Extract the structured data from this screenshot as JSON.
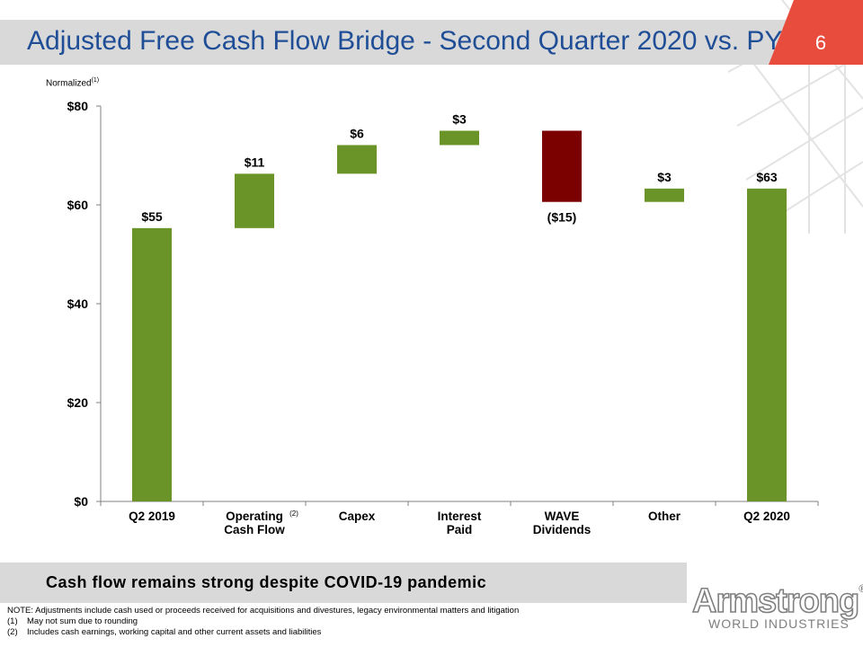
{
  "header": {
    "title": "Adjusted Free Cash Flow Bridge - Second Quarter 2020 vs. PY",
    "page_number": "6"
  },
  "chart_note": {
    "label": "Normalized",
    "sup": "(1)"
  },
  "chart_data": {
    "type": "bar",
    "subtype": "waterfall",
    "categories": [
      "Q2 2019",
      "Operating Cash Flow",
      "Capex",
      "Interest Paid",
      "WAVE Dividends",
      "Other",
      "Q2 2020"
    ],
    "category_lines": [
      [
        "Q2 2019"
      ],
      [
        "Operating",
        "Cash Flow"
      ],
      [
        "Capex"
      ],
      [
        "Interest",
        "Paid"
      ],
      [
        "WAVE",
        "Dividends"
      ],
      [
        "Other"
      ],
      [
        "Q2 2020"
      ]
    ],
    "category_sup": [
      "",
      "(2)",
      "",
      "",
      "",
      "",
      ""
    ],
    "bars": [
      {
        "base": 0,
        "top": 55.3,
        "label": "$55",
        "kind": "total"
      },
      {
        "base": 55.3,
        "top": 66.3,
        "label": "$11",
        "kind": "increase"
      },
      {
        "base": 66.3,
        "top": 72.1,
        "label": "$6",
        "kind": "increase"
      },
      {
        "base": 72.1,
        "top": 75.0,
        "label": "$3",
        "kind": "increase"
      },
      {
        "base": 75.0,
        "top": 60.6,
        "label": "($15)",
        "kind": "decrease"
      },
      {
        "base": 60.6,
        "top": 63.3,
        "label": "$3",
        "kind": "increase"
      },
      {
        "base": 0,
        "top": 63.3,
        "label": "$63",
        "kind": "total"
      }
    ],
    "ylim": [
      0,
      80
    ],
    "yticks": [
      0,
      20,
      40,
      60,
      80
    ],
    "ytick_labels": [
      "$0",
      "$20",
      "$40",
      "$60",
      "$80"
    ],
    "colors": {
      "increase": "#6b9428",
      "total": "#6b9428",
      "decrease": "#7b0000"
    },
    "grid": false,
    "legend": "none"
  },
  "banner": {
    "text": "Cash flow remains strong despite COVID-19 pandemic"
  },
  "notes": {
    "main": "NOTE:  Adjustments include cash used or proceeds received for acquisitions and divestures, legacy environmental matters and litigation",
    "items": [
      {
        "num": "(1)",
        "text": "May not sum due to rounding"
      },
      {
        "num": "(2)",
        "text": "Includes cash earnings, working capital and other current assets and liabilities"
      }
    ]
  },
  "logo": {
    "word": "Armstrong",
    "mark": "®",
    "sub": "WORLD INDUSTRIES"
  },
  "colors": {
    "title": "#1f4e97",
    "page_tab": "#e84c3d",
    "gray_band": "#d9d9d9"
  }
}
